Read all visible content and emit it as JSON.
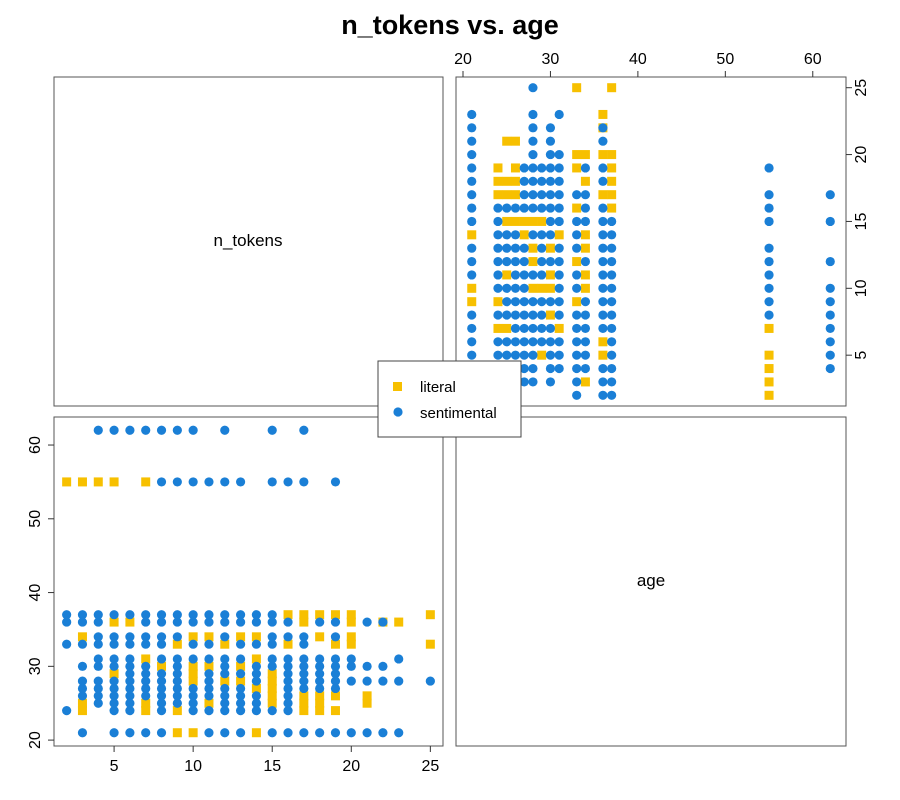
{
  "chart_data": {
    "type": "scatter",
    "title": "n_tokens vs. age",
    "variables": [
      "n_tokens",
      "age"
    ],
    "layout": "scatterplot-matrix",
    "axes": {
      "n_tokens": {
        "ticks": [
          5,
          10,
          15,
          20,
          25
        ],
        "range": [
          1.2,
          25.8
        ]
      },
      "age": {
        "ticks": [
          20,
          30,
          40,
          50,
          60
        ],
        "range": [
          19.2,
          63.8
        ]
      }
    },
    "legend": {
      "placement": "center",
      "entries": [
        {
          "label": "literal",
          "color": "#f7c000",
          "shape": "square"
        },
        {
          "label": "sentimental",
          "color": "#1a7fd6",
          "shape": "circle"
        }
      ]
    },
    "series": [
      {
        "name": "literal",
        "color": "#f7c000",
        "shape": "square",
        "x_variable": "n_tokens",
        "y_variable": "age",
        "points": [
          [
            2,
            55
          ],
          [
            3,
            55
          ],
          [
            4,
            55
          ],
          [
            5,
            55
          ],
          [
            7,
            55
          ],
          [
            3,
            24
          ],
          [
            3,
            25
          ],
          [
            3,
            34
          ],
          [
            5,
            29
          ],
          [
            5,
            36
          ],
          [
            6,
            36
          ],
          [
            7,
            24
          ],
          [
            7,
            25
          ],
          [
            7,
            31
          ],
          [
            8,
            30
          ],
          [
            9,
            21
          ],
          [
            9,
            24
          ],
          [
            9,
            33
          ],
          [
            10,
            21
          ],
          [
            10,
            28
          ],
          [
            10,
            29
          ],
          [
            10,
            30
          ],
          [
            10,
            34
          ],
          [
            11,
            25
          ],
          [
            11,
            30
          ],
          [
            11,
            34
          ],
          [
            12,
            28
          ],
          [
            12,
            33
          ],
          [
            13,
            28
          ],
          [
            13,
            30
          ],
          [
            13,
            34
          ],
          [
            14,
            21
          ],
          [
            14,
            27
          ],
          [
            14,
            31
          ],
          [
            14,
            34
          ],
          [
            15,
            25
          ],
          [
            15,
            26
          ],
          [
            15,
            27
          ],
          [
            15,
            28
          ],
          [
            15,
            29
          ],
          [
            16,
            33
          ],
          [
            16,
            37
          ],
          [
            17,
            24
          ],
          [
            17,
            25
          ],
          [
            17,
            26
          ],
          [
            17,
            36
          ],
          [
            17,
            37
          ],
          [
            18,
            24
          ],
          [
            18,
            25
          ],
          [
            18,
            26
          ],
          [
            18,
            34
          ],
          [
            18,
            37
          ],
          [
            19,
            24
          ],
          [
            19,
            26
          ],
          [
            19,
            33
          ],
          [
            19,
            37
          ],
          [
            20,
            33
          ],
          [
            20,
            34
          ],
          [
            20,
            36
          ],
          [
            20,
            37
          ],
          [
            21,
            25
          ],
          [
            21,
            26
          ],
          [
            22,
            36
          ],
          [
            23,
            36
          ],
          [
            25,
            33
          ],
          [
            25,
            37
          ]
        ]
      },
      {
        "name": "sentimental",
        "color": "#1a7fd6",
        "shape": "circle",
        "x_variable": "n_tokens",
        "y_variable": "age",
        "points": [
          [
            4,
            62
          ],
          [
            5,
            62
          ],
          [
            6,
            62
          ],
          [
            7,
            62
          ],
          [
            8,
            62
          ],
          [
            9,
            62
          ],
          [
            10,
            62
          ],
          [
            12,
            62
          ],
          [
            15,
            62
          ],
          [
            17,
            62
          ],
          [
            8,
            55
          ],
          [
            9,
            55
          ],
          [
            10,
            55
          ],
          [
            11,
            55
          ],
          [
            12,
            55
          ],
          [
            13,
            55
          ],
          [
            15,
            55
          ],
          [
            16,
            55
          ],
          [
            17,
            55
          ],
          [
            19,
            55
          ],
          [
            2,
            24
          ],
          [
            2,
            33
          ],
          [
            2,
            36
          ],
          [
            2,
            37
          ],
          [
            3,
            21
          ],
          [
            3,
            26
          ],
          [
            3,
            27
          ],
          [
            3,
            28
          ],
          [
            3,
            30
          ],
          [
            3,
            33
          ],
          [
            3,
            36
          ],
          [
            3,
            37
          ],
          [
            4,
            25
          ],
          [
            4,
            26
          ],
          [
            4,
            27
          ],
          [
            4,
            28
          ],
          [
            4,
            30
          ],
          [
            4,
            31
          ],
          [
            4,
            33
          ],
          [
            4,
            34
          ],
          [
            4,
            36
          ],
          [
            4,
            37
          ],
          [
            5,
            21
          ],
          [
            5,
            24
          ],
          [
            5,
            25
          ],
          [
            5,
            26
          ],
          [
            5,
            27
          ],
          [
            5,
            28
          ],
          [
            5,
            30
          ],
          [
            5,
            31
          ],
          [
            5,
            33
          ],
          [
            5,
            34
          ],
          [
            5,
            37
          ],
          [
            6,
            21
          ],
          [
            6,
            24
          ],
          [
            6,
            25
          ],
          [
            6,
            26
          ],
          [
            6,
            27
          ],
          [
            6,
            28
          ],
          [
            6,
            29
          ],
          [
            6,
            30
          ],
          [
            6,
            31
          ],
          [
            6,
            33
          ],
          [
            6,
            34
          ],
          [
            6,
            37
          ],
          [
            7,
            21
          ],
          [
            7,
            26
          ],
          [
            7,
            27
          ],
          [
            7,
            28
          ],
          [
            7,
            29
          ],
          [
            7,
            30
          ],
          [
            7,
            33
          ],
          [
            7,
            34
          ],
          [
            7,
            36
          ],
          [
            7,
            37
          ],
          [
            8,
            21
          ],
          [
            8,
            24
          ],
          [
            8,
            25
          ],
          [
            8,
            26
          ],
          [
            8,
            27
          ],
          [
            8,
            28
          ],
          [
            8,
            29
          ],
          [
            8,
            31
          ],
          [
            8,
            33
          ],
          [
            8,
            34
          ],
          [
            8,
            36
          ],
          [
            8,
            37
          ],
          [
            9,
            25
          ],
          [
            9,
            26
          ],
          [
            9,
            27
          ],
          [
            9,
            28
          ],
          [
            9,
            29
          ],
          [
            9,
            30
          ],
          [
            9,
            31
          ],
          [
            9,
            34
          ],
          [
            9,
            36
          ],
          [
            9,
            37
          ],
          [
            10,
            24
          ],
          [
            10,
            25
          ],
          [
            10,
            26
          ],
          [
            10,
            27
          ],
          [
            10,
            31
          ],
          [
            10,
            33
          ],
          [
            10,
            36
          ],
          [
            10,
            37
          ],
          [
            11,
            21
          ],
          [
            11,
            24
          ],
          [
            11,
            26
          ],
          [
            11,
            27
          ],
          [
            11,
            28
          ],
          [
            11,
            29
          ],
          [
            11,
            31
          ],
          [
            11,
            33
          ],
          [
            11,
            36
          ],
          [
            11,
            37
          ],
          [
            12,
            21
          ],
          [
            12,
            24
          ],
          [
            12,
            25
          ],
          [
            12,
            26
          ],
          [
            12,
            27
          ],
          [
            12,
            29
          ],
          [
            12,
            30
          ],
          [
            12,
            31
          ],
          [
            12,
            34
          ],
          [
            12,
            36
          ],
          [
            12,
            37
          ],
          [
            13,
            21
          ],
          [
            13,
            24
          ],
          [
            13,
            25
          ],
          [
            13,
            26
          ],
          [
            13,
            27
          ],
          [
            13,
            29
          ],
          [
            13,
            31
          ],
          [
            13,
            33
          ],
          [
            13,
            36
          ],
          [
            13,
            37
          ],
          [
            14,
            24
          ],
          [
            14,
            25
          ],
          [
            14,
            26
          ],
          [
            14,
            28
          ],
          [
            14,
            29
          ],
          [
            14,
            30
          ],
          [
            14,
            33
          ],
          [
            14,
            36
          ],
          [
            14,
            37
          ],
          [
            15,
            21
          ],
          [
            15,
            24
          ],
          [
            15,
            30
          ],
          [
            15,
            31
          ],
          [
            15,
            33
          ],
          [
            15,
            34
          ],
          [
            15,
            36
          ],
          [
            15,
            37
          ],
          [
            16,
            21
          ],
          [
            16,
            24
          ],
          [
            16,
            25
          ],
          [
            16,
            26
          ],
          [
            16,
            27
          ],
          [
            16,
            28
          ],
          [
            16,
            29
          ],
          [
            16,
            30
          ],
          [
            16,
            31
          ],
          [
            16,
            34
          ],
          [
            16,
            36
          ],
          [
            17,
            21
          ],
          [
            17,
            27
          ],
          [
            17,
            28
          ],
          [
            17,
            29
          ],
          [
            17,
            30
          ],
          [
            17,
            31
          ],
          [
            17,
            33
          ],
          [
            17,
            34
          ],
          [
            18,
            21
          ],
          [
            18,
            27
          ],
          [
            18,
            28
          ],
          [
            18,
            29
          ],
          [
            18,
            30
          ],
          [
            18,
            31
          ],
          [
            18,
            36
          ],
          [
            19,
            21
          ],
          [
            19,
            27
          ],
          [
            19,
            28
          ],
          [
            19,
            29
          ],
          [
            19,
            30
          ],
          [
            19,
            31
          ],
          [
            19,
            34
          ],
          [
            19,
            36
          ],
          [
            20,
            21
          ],
          [
            20,
            28
          ],
          [
            20,
            30
          ],
          [
            20,
            31
          ],
          [
            21,
            21
          ],
          [
            21,
            28
          ],
          [
            21,
            30
          ],
          [
            21,
            36
          ],
          [
            22,
            21
          ],
          [
            22,
            28
          ],
          [
            22,
            30
          ],
          [
            22,
            36
          ],
          [
            23,
            21
          ],
          [
            23,
            28
          ],
          [
            23,
            31
          ],
          [
            25,
            28
          ]
        ]
      }
    ]
  }
}
